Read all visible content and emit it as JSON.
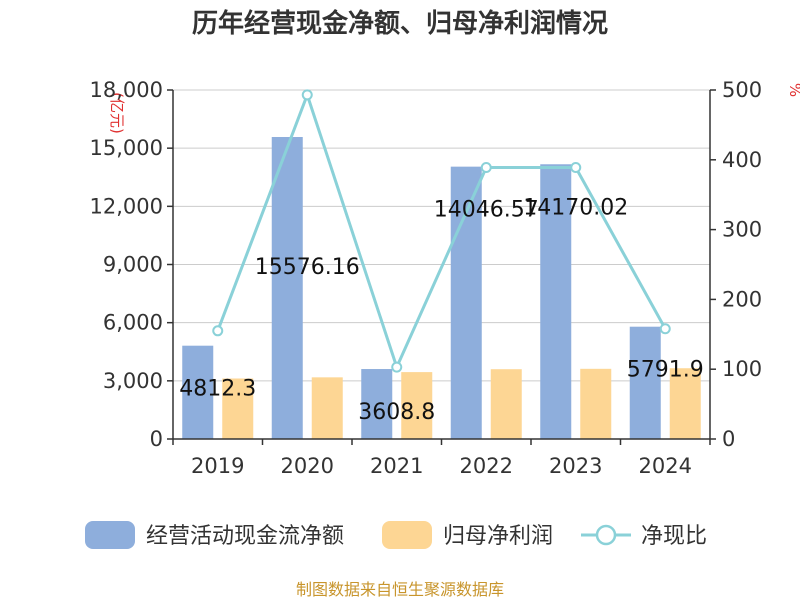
{
  "chart_data": {
    "type": "bar",
    "title": "历年经营现金净额、归母净利润情况",
    "left_unit": "(亿元)",
    "right_unit": "%",
    "categories": [
      "2019",
      "2020",
      "2021",
      "2022",
      "2023",
      "2024"
    ],
    "y_left_range": [
      0,
      18000
    ],
    "y_left_ticks": [
      "0",
      "3,000",
      "6,000",
      "9,000",
      "12,000",
      "15,000",
      "18,000"
    ],
    "y_right_range": [
      0,
      500
    ],
    "y_right_ticks": [
      "0",
      "100",
      "200",
      "300",
      "400",
      "500"
    ],
    "grid": true,
    "legend_position": "bottom",
    "series": [
      {
        "name": "经营活动现金流净额",
        "type": "bar",
        "axis": "left",
        "color": "#8eaedc",
        "values": [
          4812.3,
          15576.16,
          3608.8,
          14046.57,
          14170.02,
          5791.9
        ],
        "labels": [
          "4812.3",
          "15576.16",
          "3608.8",
          "14046.57",
          "14170.02",
          "5791.9"
        ]
      },
      {
        "name": "归母净利润",
        "type": "bar",
        "axis": "left",
        "color": "#fdd694",
        "values": [
          3120,
          3180,
          3450,
          3600,
          3620,
          3650
        ]
      },
      {
        "name": "净现比",
        "type": "line",
        "axis": "right",
        "color": "#8ad1d8",
        "values": [
          155,
          493,
          103,
          389,
          389,
          158
        ]
      }
    ],
    "source": "制图数据来自恒生聚源数据库"
  }
}
